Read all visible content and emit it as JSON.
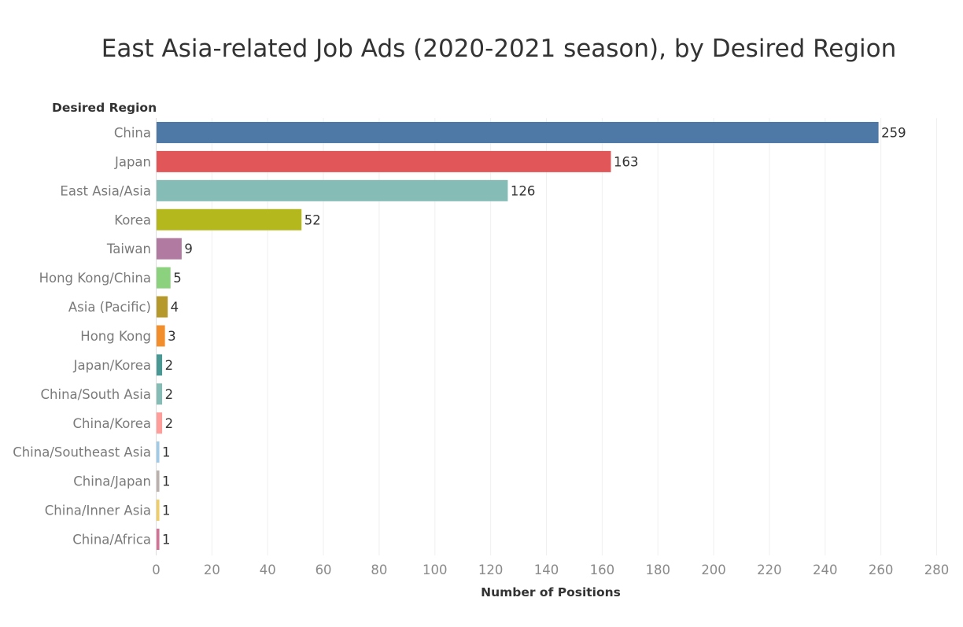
{
  "chart_data": {
    "type": "bar",
    "orientation": "horizontal",
    "title": "East Asia-related Job Ads (2020-2021 season), by Desired Region",
    "ylabel": "Desired Region",
    "xlabel": "Number of Positions",
    "categories": [
      "China",
      "Japan",
      "East Asia/Asia",
      "Korea",
      "Taiwan",
      "Hong Kong/China",
      "Asia (Pacific)",
      "Hong Kong",
      "Japan/Korea",
      "China/South Asia",
      "China/Korea",
      "China/Southeast Asia",
      "China/Japan",
      "China/Inner Asia",
      "China/Africa"
    ],
    "values": [
      259,
      163,
      126,
      52,
      9,
      5,
      4,
      3,
      2,
      2,
      2,
      1,
      1,
      1,
      1
    ],
    "colors": [
      "#4e79a7",
      "#e15759",
      "#86bcb6",
      "#b5b81d",
      "#b07aa1",
      "#8cd17d",
      "#b6992d",
      "#f28e2b",
      "#499894",
      "#86bcb6",
      "#ff9d9a",
      "#a0cbe8",
      "#bab0ac",
      "#f1ce63",
      "#d37295"
    ],
    "xlim": [
      0,
      280
    ],
    "xticks": [
      0,
      20,
      40,
      60,
      80,
      100,
      120,
      140,
      160,
      180,
      200,
      220,
      240,
      260,
      280
    ],
    "grid": true
  }
}
